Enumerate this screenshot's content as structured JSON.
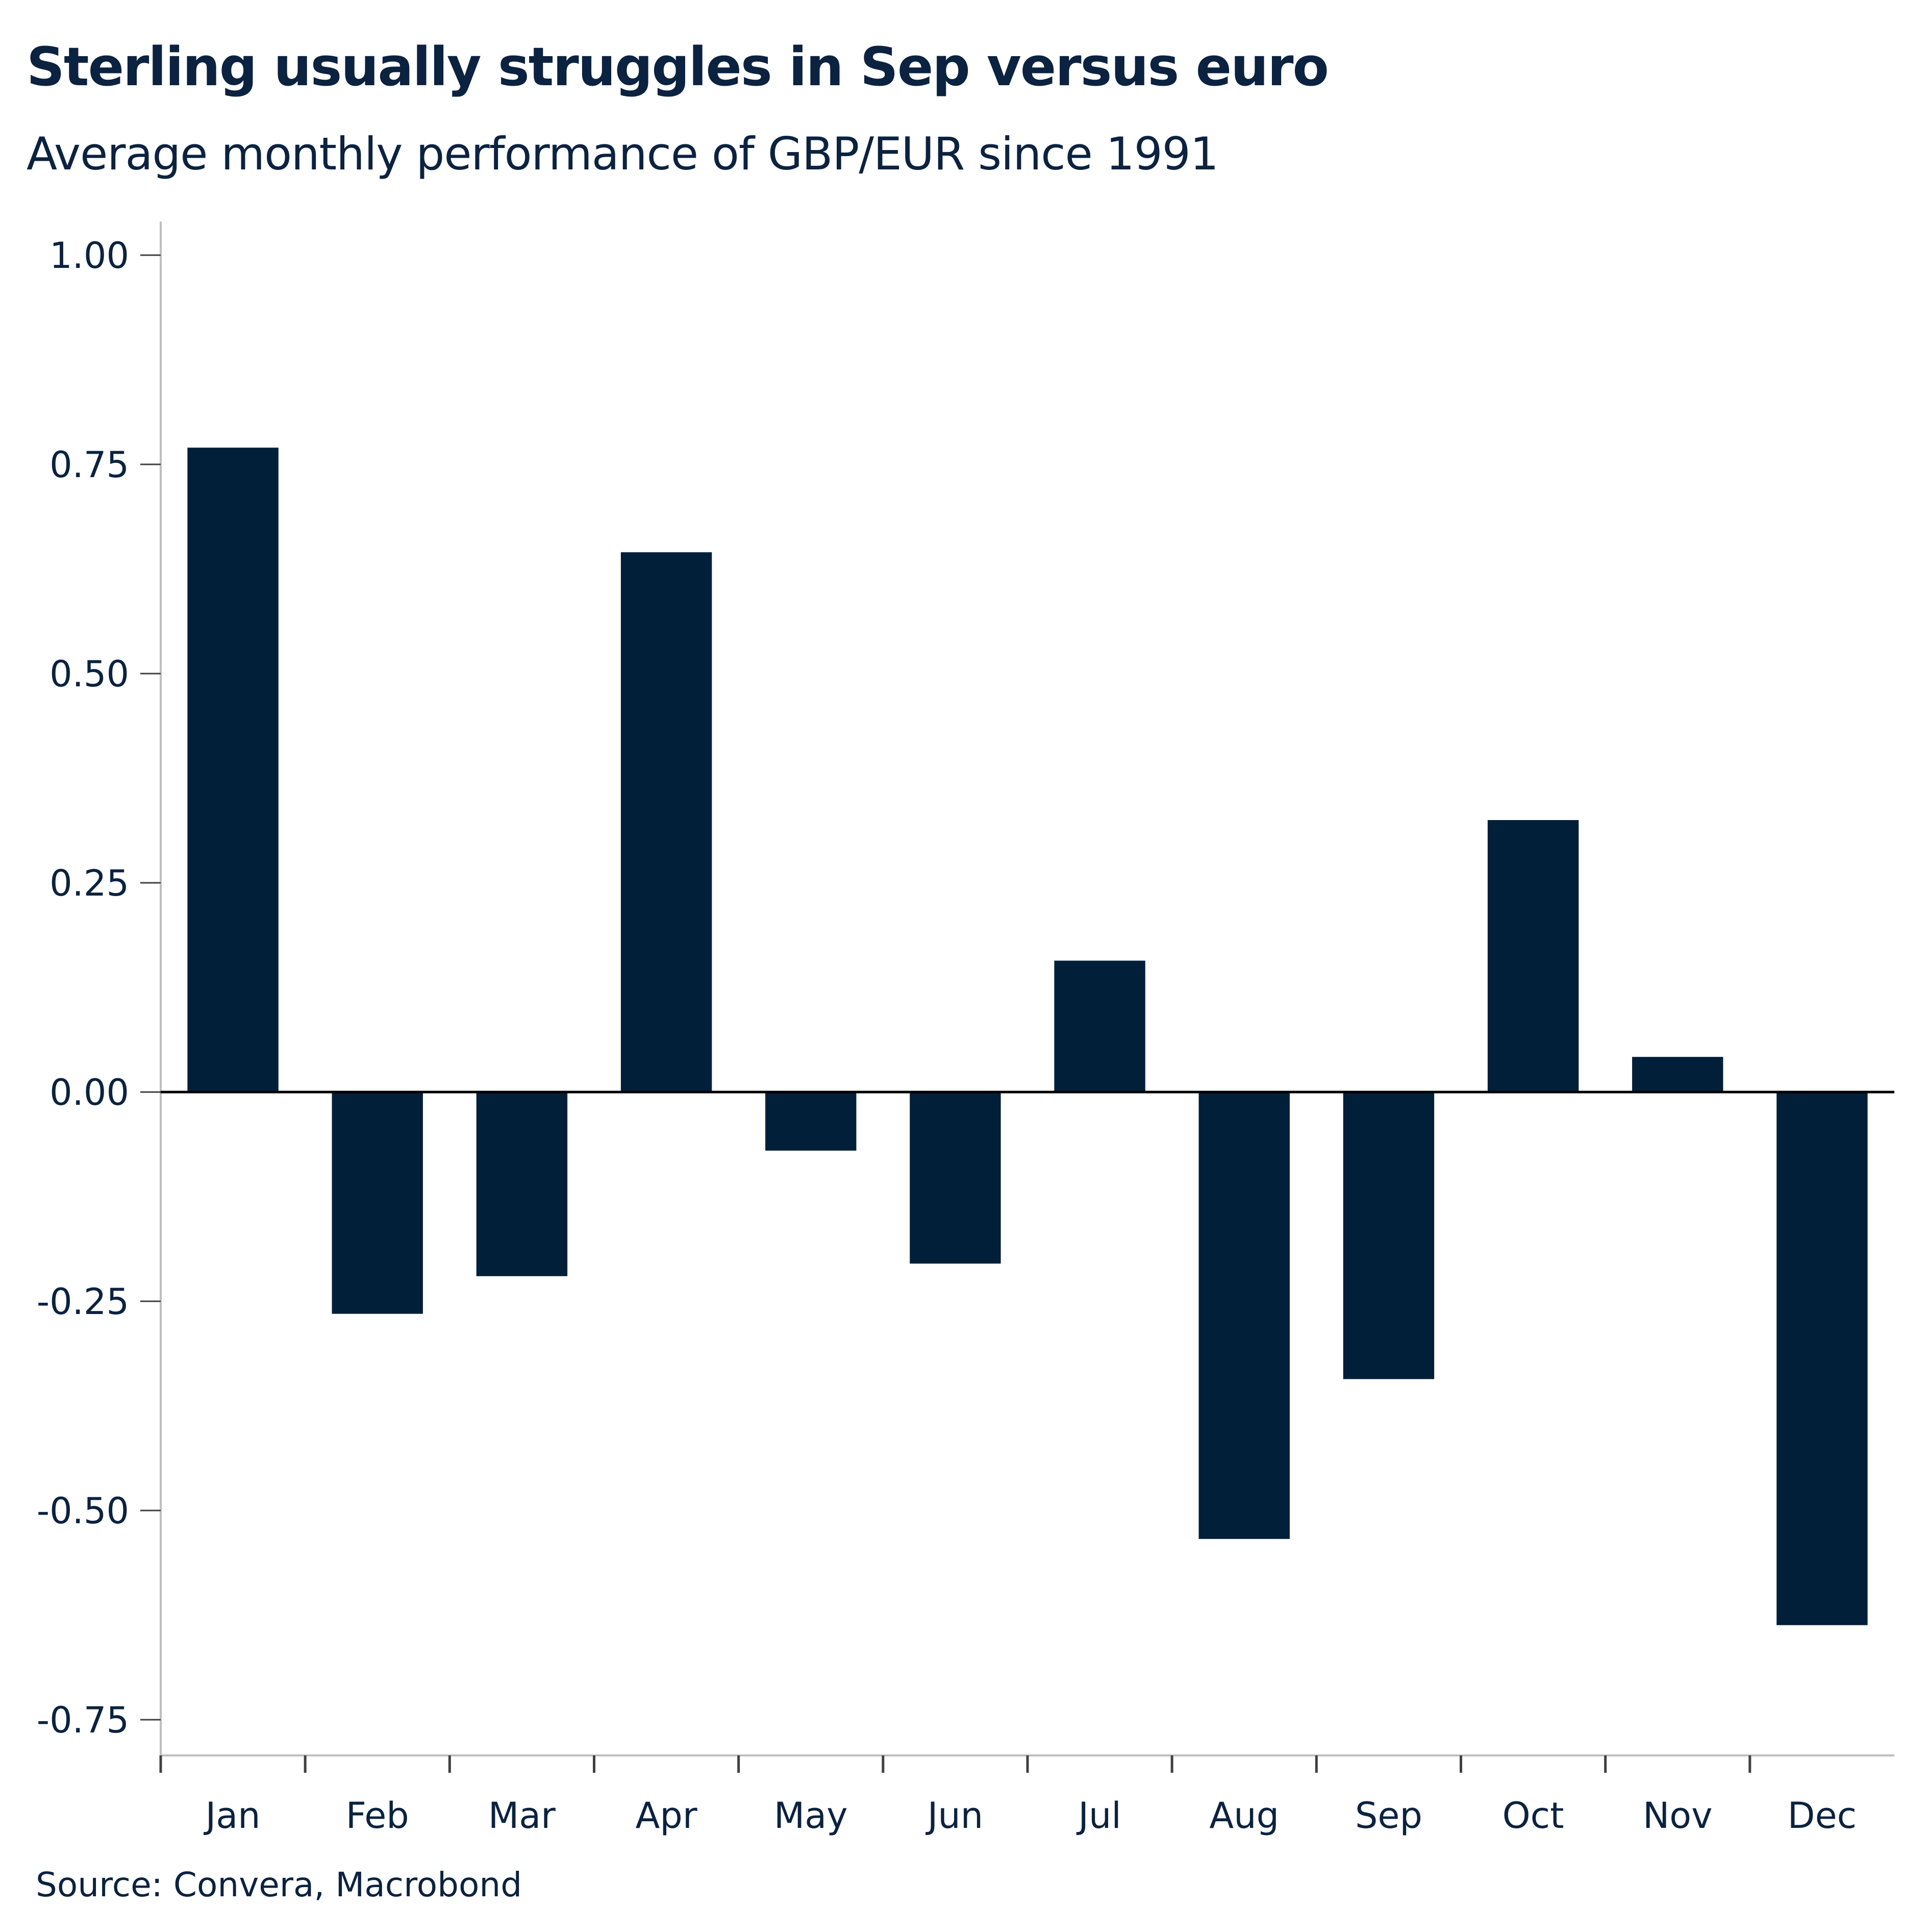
{
  "header": {
    "title": "Sterling usually struggles in Sep versus euro",
    "subtitle": "Average monthly performance of GBP/EUR since 1991"
  },
  "footer": {
    "source": "Source: Convera, Macrobond"
  },
  "colors": {
    "bar": "#021f3a",
    "text": "#0b2240",
    "axis": "#bfbfbf",
    "zero_line": "#000000",
    "tick": "#404040"
  },
  "chart_data": {
    "type": "bar",
    "title": "Sterling usually struggles in Sep versus euro",
    "subtitle": "Average monthly performance of GBP/EUR since 1991",
    "xlabel": "",
    "ylabel": "",
    "categories": [
      "Jan",
      "Feb",
      "Mar",
      "Apr",
      "May",
      "Jun",
      "Jul",
      "Aug",
      "Sep",
      "Oct",
      "Nov",
      "Dec"
    ],
    "values": [
      0.77,
      -0.265,
      -0.22,
      0.645,
      -0.07,
      -0.205,
      0.157,
      -0.534,
      -0.343,
      0.325,
      0.042,
      -0.637
    ],
    "ylim": [
      -0.8,
      1.04
    ],
    "yticks": [
      1.0,
      0.75,
      0.5,
      0.25,
      0.0,
      -0.25,
      -0.5,
      -0.75
    ],
    "ytick_labels": [
      "1.00",
      "0.75",
      "0.50",
      "0.25",
      "0.00",
      "-0.25",
      "-0.50",
      "-0.75"
    ],
    "grid": false,
    "legend": "none",
    "source": "Source: Convera, Macrobond"
  }
}
